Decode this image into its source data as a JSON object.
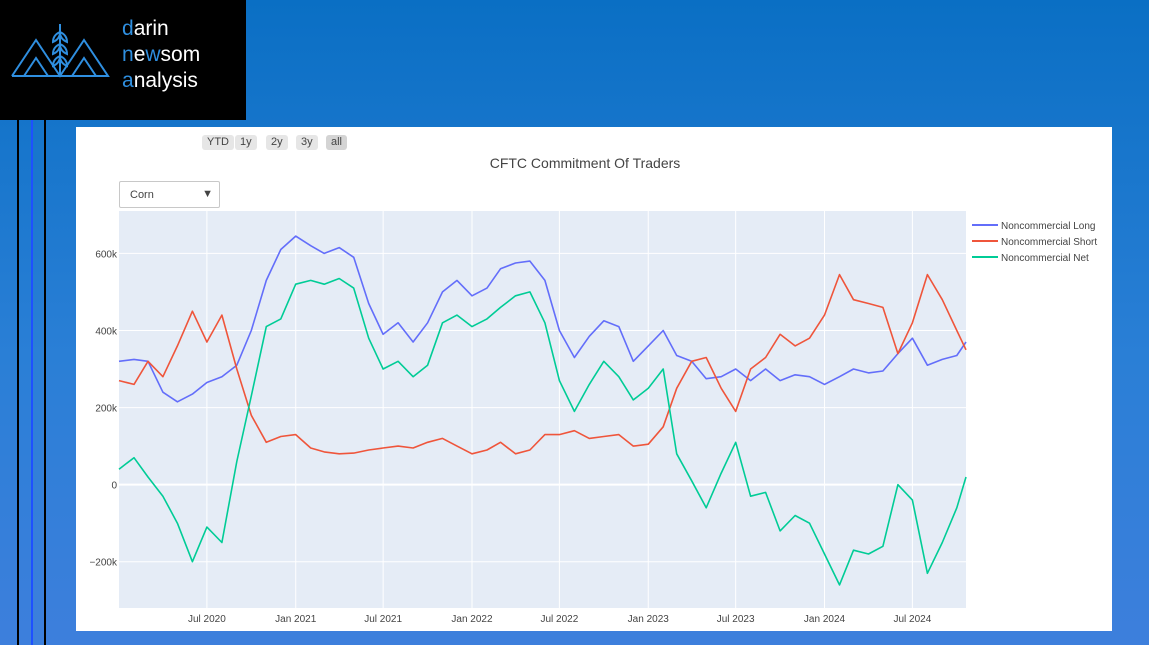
{
  "logo": {
    "line1_a": "d",
    "line1_b": "arin",
    "line2_a": "n",
    "line2_b": "e",
    "line2_c": "w",
    "line2_d": "som",
    "line3_a": "a",
    "line3_b": "nalysis"
  },
  "range_buttons": [
    "YTD",
    "1y",
    "2y",
    "3y",
    "all"
  ],
  "range_active": "all",
  "dropdown": {
    "value": "Corn"
  },
  "colors": {
    "long": "#636efa",
    "short": "#ef553b",
    "net": "#00cc96",
    "plot_bg": "#e5ecf6"
  },
  "chart_data": {
    "type": "line",
    "title": "CFTC Commitment Of Traders",
    "xlabel": "",
    "ylabel": "",
    "x_range": [
      "2020-01-01",
      "2024-10-20"
    ],
    "ylim": [
      -320000,
      710000
    ],
    "y_ticks": [
      {
        "v": -200000,
        "label": "−200k"
      },
      {
        "v": 0,
        "label": "0"
      },
      {
        "v": 200000,
        "label": "200k"
      },
      {
        "v": 400000,
        "label": "400k"
      },
      {
        "v": 600000,
        "label": "600k"
      }
    ],
    "x_ticks": [
      {
        "d": "2020-07-01",
        "label": "Jul 2020"
      },
      {
        "d": "2021-01-01",
        "label": "Jan 2021"
      },
      {
        "d": "2021-07-01",
        "label": "Jul 2021"
      },
      {
        "d": "2022-01-01",
        "label": "Jan 2022"
      },
      {
        "d": "2022-07-01",
        "label": "Jul 2022"
      },
      {
        "d": "2023-01-01",
        "label": "Jan 2023"
      },
      {
        "d": "2023-07-01",
        "label": "Jul 2023"
      },
      {
        "d": "2024-01-01",
        "label": "Jan 2024"
      },
      {
        "d": "2024-07-01",
        "label": "Jul 2024"
      }
    ],
    "legend_position": "right",
    "series": [
      {
        "name": "Noncommercial Long",
        "color": "#636efa",
        "points": [
          [
            "2020-01-01",
            320000
          ],
          [
            "2020-02-01",
            325000
          ],
          [
            "2020-03-01",
            320000
          ],
          [
            "2020-04-01",
            240000
          ],
          [
            "2020-05-01",
            215000
          ],
          [
            "2020-06-01",
            235000
          ],
          [
            "2020-07-01",
            265000
          ],
          [
            "2020-08-01",
            280000
          ],
          [
            "2020-09-01",
            310000
          ],
          [
            "2020-10-01",
            400000
          ],
          [
            "2020-11-01",
            530000
          ],
          [
            "2020-12-01",
            610000
          ],
          [
            "2021-01-01",
            645000
          ],
          [
            "2021-02-01",
            620000
          ],
          [
            "2021-03-01",
            600000
          ],
          [
            "2021-04-01",
            615000
          ],
          [
            "2021-05-01",
            590000
          ],
          [
            "2021-06-01",
            470000
          ],
          [
            "2021-07-01",
            390000
          ],
          [
            "2021-08-01",
            420000
          ],
          [
            "2021-09-01",
            370000
          ],
          [
            "2021-10-01",
            420000
          ],
          [
            "2021-11-01",
            500000
          ],
          [
            "2021-12-01",
            530000
          ],
          [
            "2022-01-01",
            490000
          ],
          [
            "2022-02-01",
            510000
          ],
          [
            "2022-03-01",
            560000
          ],
          [
            "2022-04-01",
            575000
          ],
          [
            "2022-05-01",
            580000
          ],
          [
            "2022-06-01",
            530000
          ],
          [
            "2022-07-01",
            400000
          ],
          [
            "2022-08-01",
            330000
          ],
          [
            "2022-09-01",
            385000
          ],
          [
            "2022-10-01",
            425000
          ],
          [
            "2022-11-01",
            410000
          ],
          [
            "2022-12-01",
            320000
          ],
          [
            "2023-01-01",
            360000
          ],
          [
            "2023-02-01",
            400000
          ],
          [
            "2023-03-01",
            335000
          ],
          [
            "2023-04-01",
            320000
          ],
          [
            "2023-05-01",
            275000
          ],
          [
            "2023-06-01",
            280000
          ],
          [
            "2023-07-01",
            300000
          ],
          [
            "2023-08-01",
            270000
          ],
          [
            "2023-09-01",
            300000
          ],
          [
            "2023-10-01",
            270000
          ],
          [
            "2023-11-01",
            285000
          ],
          [
            "2023-12-01",
            280000
          ],
          [
            "2024-01-01",
            260000
          ],
          [
            "2024-02-01",
            280000
          ],
          [
            "2024-03-01",
            300000
          ],
          [
            "2024-04-01",
            290000
          ],
          [
            "2024-05-01",
            295000
          ],
          [
            "2024-06-01",
            340000
          ],
          [
            "2024-07-01",
            380000
          ],
          [
            "2024-08-01",
            310000
          ],
          [
            "2024-09-01",
            325000
          ],
          [
            "2024-10-01",
            335000
          ],
          [
            "2024-10-20",
            370000
          ]
        ]
      },
      {
        "name": "Noncommercial Short",
        "color": "#ef553b",
        "points": [
          [
            "2020-01-01",
            270000
          ],
          [
            "2020-02-01",
            260000
          ],
          [
            "2020-03-01",
            320000
          ],
          [
            "2020-04-01",
            280000
          ],
          [
            "2020-05-01",
            360000
          ],
          [
            "2020-06-01",
            450000
          ],
          [
            "2020-07-01",
            370000
          ],
          [
            "2020-08-01",
            440000
          ],
          [
            "2020-09-01",
            300000
          ],
          [
            "2020-10-01",
            180000
          ],
          [
            "2020-11-01",
            110000
          ],
          [
            "2020-12-01",
            125000
          ],
          [
            "2021-01-01",
            130000
          ],
          [
            "2021-02-01",
            95000
          ],
          [
            "2021-03-01",
            85000
          ],
          [
            "2021-04-01",
            80000
          ],
          [
            "2021-05-01",
            82000
          ],
          [
            "2021-06-01",
            90000
          ],
          [
            "2021-07-01",
            95000
          ],
          [
            "2021-08-01",
            100000
          ],
          [
            "2021-09-01",
            95000
          ],
          [
            "2021-10-01",
            110000
          ],
          [
            "2021-11-01",
            120000
          ],
          [
            "2021-12-01",
            100000
          ],
          [
            "2022-01-01",
            80000
          ],
          [
            "2022-02-01",
            90000
          ],
          [
            "2022-03-01",
            110000
          ],
          [
            "2022-04-01",
            80000
          ],
          [
            "2022-05-01",
            90000
          ],
          [
            "2022-06-01",
            130000
          ],
          [
            "2022-07-01",
            130000
          ],
          [
            "2022-08-01",
            140000
          ],
          [
            "2022-09-01",
            120000
          ],
          [
            "2022-10-01",
            125000
          ],
          [
            "2022-11-01",
            130000
          ],
          [
            "2022-12-01",
            100000
          ],
          [
            "2023-01-01",
            105000
          ],
          [
            "2023-02-01",
            150000
          ],
          [
            "2023-03-01",
            250000
          ],
          [
            "2023-04-01",
            320000
          ],
          [
            "2023-05-01",
            330000
          ],
          [
            "2023-06-01",
            250000
          ],
          [
            "2023-07-01",
            190000
          ],
          [
            "2023-08-01",
            300000
          ],
          [
            "2023-09-01",
            330000
          ],
          [
            "2023-10-01",
            390000
          ],
          [
            "2023-11-01",
            360000
          ],
          [
            "2023-12-01",
            380000
          ],
          [
            "2024-01-01",
            440000
          ],
          [
            "2024-02-01",
            545000
          ],
          [
            "2024-03-01",
            480000
          ],
          [
            "2024-04-01",
            470000
          ],
          [
            "2024-05-01",
            460000
          ],
          [
            "2024-06-01",
            340000
          ],
          [
            "2024-07-01",
            420000
          ],
          [
            "2024-08-01",
            545000
          ],
          [
            "2024-09-01",
            480000
          ],
          [
            "2024-10-01",
            400000
          ],
          [
            "2024-10-20",
            350000
          ]
        ]
      },
      {
        "name": "Noncommercial Net",
        "color": "#00cc96",
        "points": [
          [
            "2020-01-01",
            40000
          ],
          [
            "2020-02-01",
            70000
          ],
          [
            "2020-03-01",
            20000
          ],
          [
            "2020-04-01",
            -30000
          ],
          [
            "2020-05-01",
            -100000
          ],
          [
            "2020-06-01",
            -200000
          ],
          [
            "2020-07-01",
            -110000
          ],
          [
            "2020-08-01",
            -150000
          ],
          [
            "2020-09-01",
            60000
          ],
          [
            "2020-10-01",
            230000
          ],
          [
            "2020-11-01",
            410000
          ],
          [
            "2020-12-01",
            430000
          ],
          [
            "2021-01-01",
            520000
          ],
          [
            "2021-02-01",
            530000
          ],
          [
            "2021-03-01",
            520000
          ],
          [
            "2021-04-01",
            535000
          ],
          [
            "2021-05-01",
            510000
          ],
          [
            "2021-06-01",
            380000
          ],
          [
            "2021-07-01",
            300000
          ],
          [
            "2021-08-01",
            320000
          ],
          [
            "2021-09-01",
            280000
          ],
          [
            "2021-10-01",
            310000
          ],
          [
            "2021-11-01",
            420000
          ],
          [
            "2021-12-01",
            440000
          ],
          [
            "2022-01-01",
            410000
          ],
          [
            "2022-02-01",
            430000
          ],
          [
            "2022-03-01",
            460000
          ],
          [
            "2022-04-01",
            490000
          ],
          [
            "2022-05-01",
            500000
          ],
          [
            "2022-06-01",
            420000
          ],
          [
            "2022-07-01",
            270000
          ],
          [
            "2022-08-01",
            190000
          ],
          [
            "2022-09-01",
            260000
          ],
          [
            "2022-10-01",
            320000
          ],
          [
            "2022-11-01",
            280000
          ],
          [
            "2022-12-01",
            220000
          ],
          [
            "2023-01-01",
            250000
          ],
          [
            "2023-02-01",
            300000
          ],
          [
            "2023-03-01",
            80000
          ],
          [
            "2023-04-01",
            10000
          ],
          [
            "2023-05-01",
            -60000
          ],
          [
            "2023-06-01",
            30000
          ],
          [
            "2023-07-01",
            110000
          ],
          [
            "2023-08-01",
            -30000
          ],
          [
            "2023-09-01",
            -20000
          ],
          [
            "2023-10-01",
            -120000
          ],
          [
            "2023-11-01",
            -80000
          ],
          [
            "2023-12-01",
            -100000
          ],
          [
            "2024-01-01",
            -180000
          ],
          [
            "2024-02-01",
            -260000
          ],
          [
            "2024-03-01",
            -170000
          ],
          [
            "2024-04-01",
            -180000
          ],
          [
            "2024-05-01",
            -160000
          ],
          [
            "2024-06-01",
            0
          ],
          [
            "2024-07-01",
            -40000
          ],
          [
            "2024-08-01",
            -230000
          ],
          [
            "2024-09-01",
            -150000
          ],
          [
            "2024-10-01",
            -60000
          ],
          [
            "2024-10-20",
            20000
          ]
        ]
      }
    ]
  }
}
